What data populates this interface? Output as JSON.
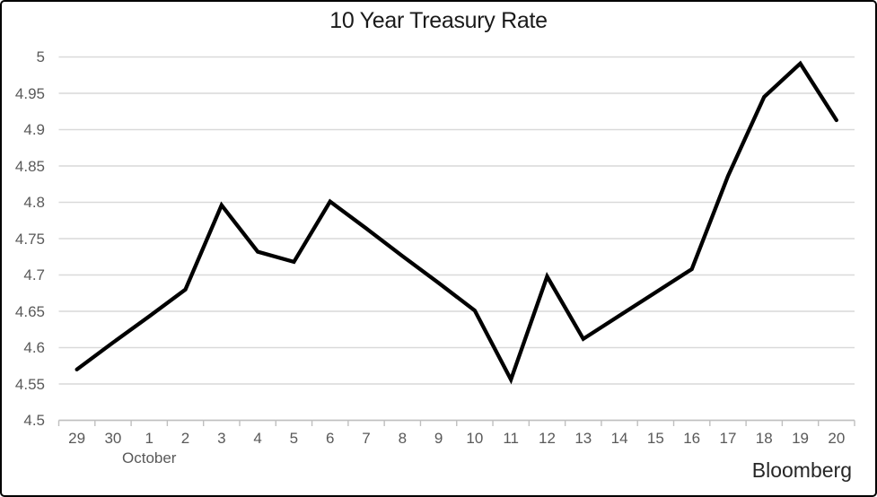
{
  "chart_data": {
    "type": "line",
    "title": "10 Year Treasury Rate",
    "x_axis": {
      "categories": [
        "29",
        "30",
        "1",
        "2",
        "3",
        "4",
        "5",
        "6",
        "7",
        "8",
        "9",
        "10",
        "11",
        "12",
        "13",
        "14",
        "15",
        "16",
        "17",
        "18",
        "19",
        "20"
      ],
      "month_label": "October",
      "month_start_index": 2
    },
    "y_axis": {
      "tick_labels": [
        "5",
        "4.95",
        "4.9",
        "4.85",
        "4.8",
        "4.75",
        "4.7",
        "4.65",
        "4.6",
        "4.55",
        "4.5"
      ],
      "tick_values": [
        5,
        4.95,
        4.9,
        4.85,
        4.8,
        4.75,
        4.7,
        4.65,
        4.6,
        4.55,
        4.5
      ],
      "min": 4.5,
      "max": 5.0
    },
    "series": [
      {
        "name": "10 Year Treasury Rate",
        "values": [
          4.57,
          4.607,
          4.643,
          4.68,
          4.796,
          4.732,
          4.718,
          4.801,
          4.764,
          4.726,
          4.689,
          4.651,
          4.556,
          4.698,
          4.612,
          4.644,
          4.676,
          4.708,
          4.836,
          4.945,
          4.991,
          4.913
        ]
      }
    ],
    "source_label": "Bloomberg",
    "grid": true,
    "legend": "none",
    "colors": {
      "line": "#000000",
      "gridline": "#d9d9d9",
      "axis": "#bfbfbf",
      "tick_label": "#595959",
      "title": "#1a1a1a"
    }
  }
}
